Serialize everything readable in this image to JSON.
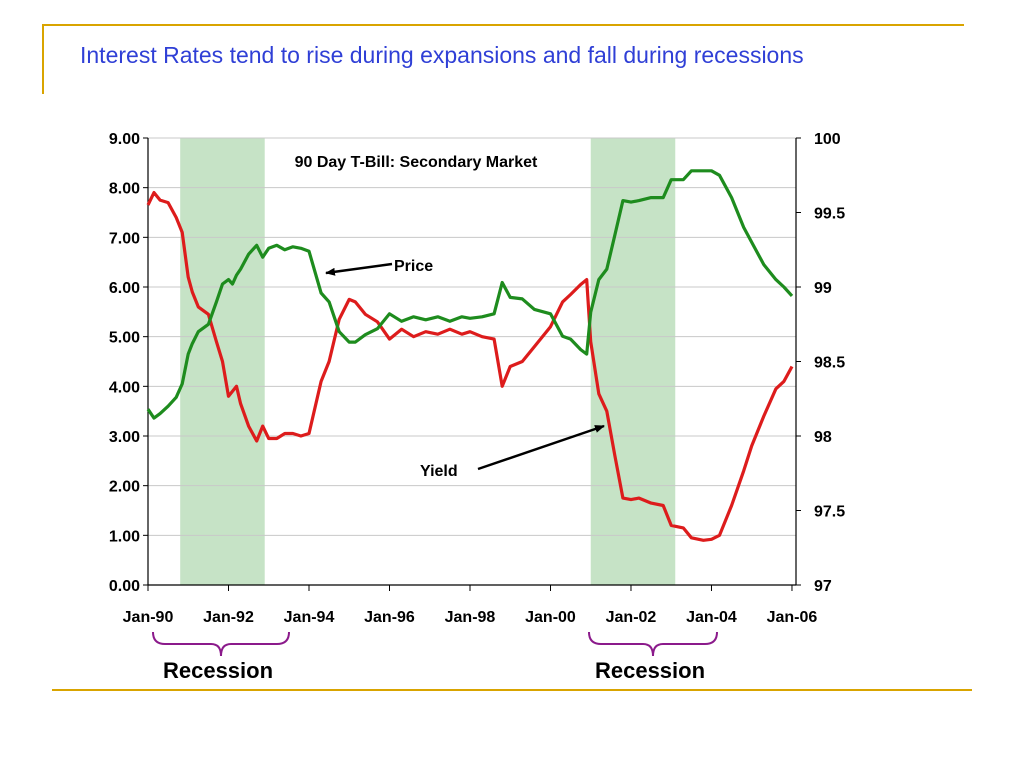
{
  "slide": {
    "title": "Interest Rates tend to rise during expansions and fall during recessions"
  },
  "colors": {
    "yield": "#dd1c1c",
    "price": "#1e8c1e",
    "recession_band": "#c6e3c6",
    "title": "#2f3fd6",
    "frame": "#d9a400",
    "brace": "#8b1a8b"
  },
  "chart_data": {
    "type": "line",
    "title": "90 Day T-Bill: Secondary Market",
    "x_tick_labels": [
      "Jan-90",
      "Jan-92",
      "Jan-94",
      "Jan-96",
      "Jan-98",
      "Jan-00",
      "Jan-02",
      "Jan-04",
      "Jan-06"
    ],
    "x_tick_values": [
      1990,
      1992,
      1994,
      1996,
      1998,
      2000,
      2002,
      2004,
      2006
    ],
    "xlim": [
      1990,
      2006.1
    ],
    "y_left": {
      "ticks": [
        "0.00",
        "1.00",
        "2.00",
        "3.00",
        "4.00",
        "5.00",
        "6.00",
        "7.00",
        "8.00",
        "9.00"
      ],
      "lim": [
        0,
        9
      ]
    },
    "y_right": {
      "ticks": [
        "97",
        "97.5",
        "98",
        "98.5",
        "99",
        "99.5",
        "100"
      ],
      "lim": [
        97,
        100
      ]
    },
    "grid": true,
    "recessions": [
      {
        "start": 1990.8,
        "end": 1992.9,
        "label": "Recession"
      },
      {
        "start": 2001.0,
        "end": 2003.1,
        "label": "Recession"
      }
    ],
    "series": [
      {
        "name": "Yield",
        "axis": "left",
        "x": [
          1990.0,
          1990.15,
          1990.3,
          1990.5,
          1990.7,
          1990.85,
          1991.0,
          1991.1,
          1991.25,
          1991.5,
          1991.7,
          1991.85,
          1992.0,
          1992.1,
          1992.2,
          1992.3,
          1992.5,
          1992.7,
          1992.85,
          1993.0,
          1993.2,
          1993.4,
          1993.6,
          1993.8,
          1994.0,
          1994.3,
          1994.5,
          1994.75,
          1995.0,
          1995.15,
          1995.4,
          1995.7,
          1996.0,
          1996.3,
          1996.6,
          1996.9,
          1997.2,
          1997.5,
          1997.8,
          1998.0,
          1998.3,
          1998.6,
          1998.8,
          1999.0,
          1999.3,
          1999.6,
          2000.0,
          2000.3,
          2000.5,
          2000.75,
          2000.9,
          2001.0,
          2001.2,
          2001.4,
          2001.6,
          2001.8,
          2002.0,
          2002.2,
          2002.5,
          2002.8,
          2003.0,
          2003.3,
          2003.5,
          2003.8,
          2004.0,
          2004.2,
          2004.5,
          2004.8,
          2005.0,
          2005.3,
          2005.6,
          2005.8,
          2006.0
        ],
        "y": [
          7.65,
          7.9,
          7.75,
          7.7,
          7.4,
          7.1,
          6.2,
          5.9,
          5.6,
          5.45,
          4.9,
          4.5,
          3.8,
          3.9,
          4.0,
          3.65,
          3.2,
          2.9,
          3.2,
          2.95,
          2.95,
          3.05,
          3.05,
          3.0,
          3.05,
          4.1,
          4.5,
          5.35,
          5.75,
          5.7,
          5.45,
          5.3,
          4.95,
          5.15,
          5.0,
          5.1,
          5.05,
          5.15,
          5.05,
          5.1,
          5.0,
          4.95,
          4.0,
          4.4,
          4.5,
          4.8,
          5.2,
          5.7,
          5.85,
          6.05,
          6.15,
          4.9,
          3.85,
          3.5,
          2.6,
          1.75,
          1.72,
          1.75,
          1.65,
          1.6,
          1.2,
          1.15,
          0.95,
          0.9,
          0.92,
          1.0,
          1.6,
          2.3,
          2.8,
          3.4,
          3.95,
          4.1,
          4.4
        ]
      },
      {
        "name": "Price",
        "axis": "right",
        "x": [
          1990.0,
          1990.15,
          1990.3,
          1990.5,
          1990.7,
          1990.85,
          1991.0,
          1991.1,
          1991.25,
          1991.5,
          1991.7,
          1991.85,
          1992.0,
          1992.1,
          1992.2,
          1992.3,
          1992.5,
          1992.7,
          1992.85,
          1993.0,
          1993.2,
          1993.4,
          1993.6,
          1993.8,
          1994.0,
          1994.3,
          1994.5,
          1994.75,
          1995.0,
          1995.15,
          1995.4,
          1995.7,
          1996.0,
          1996.3,
          1996.6,
          1996.9,
          1997.2,
          1997.5,
          1997.8,
          1998.0,
          1998.3,
          1998.6,
          1998.8,
          1999.0,
          1999.3,
          1999.6,
          2000.0,
          2000.3,
          2000.5,
          2000.75,
          2000.9,
          2001.0,
          2001.2,
          2001.4,
          2001.6,
          2001.8,
          2002.0,
          2002.2,
          2002.5,
          2002.8,
          2003.0,
          2003.3,
          2003.5,
          2003.8,
          2004.0,
          2004.2,
          2004.5,
          2004.8,
          2005.0,
          2005.3,
          2005.6,
          2005.8,
          2006.0
        ],
        "y": [
          98.18,
          98.12,
          98.15,
          98.2,
          98.26,
          98.35,
          98.55,
          98.62,
          98.7,
          98.75,
          98.9,
          99.02,
          99.05,
          99.02,
          99.08,
          99.12,
          99.22,
          99.28,
          99.2,
          99.26,
          99.28,
          99.25,
          99.27,
          99.26,
          99.24,
          98.96,
          98.9,
          98.7,
          98.63,
          98.63,
          98.68,
          98.72,
          98.82,
          98.77,
          98.8,
          98.78,
          98.8,
          98.77,
          98.8,
          98.79,
          98.8,
          98.82,
          99.03,
          98.93,
          98.92,
          98.85,
          98.82,
          98.67,
          98.65,
          98.58,
          98.55,
          98.83,
          99.05,
          99.12,
          99.35,
          99.58,
          99.57,
          99.58,
          99.6,
          99.6,
          99.72,
          99.72,
          99.78,
          99.78,
          99.78,
          99.75,
          99.6,
          99.4,
          99.3,
          99.15,
          99.05,
          99.0,
          98.94
        ]
      }
    ],
    "annotations": [
      {
        "text": "Price"
      },
      {
        "text": "Yield"
      }
    ]
  }
}
